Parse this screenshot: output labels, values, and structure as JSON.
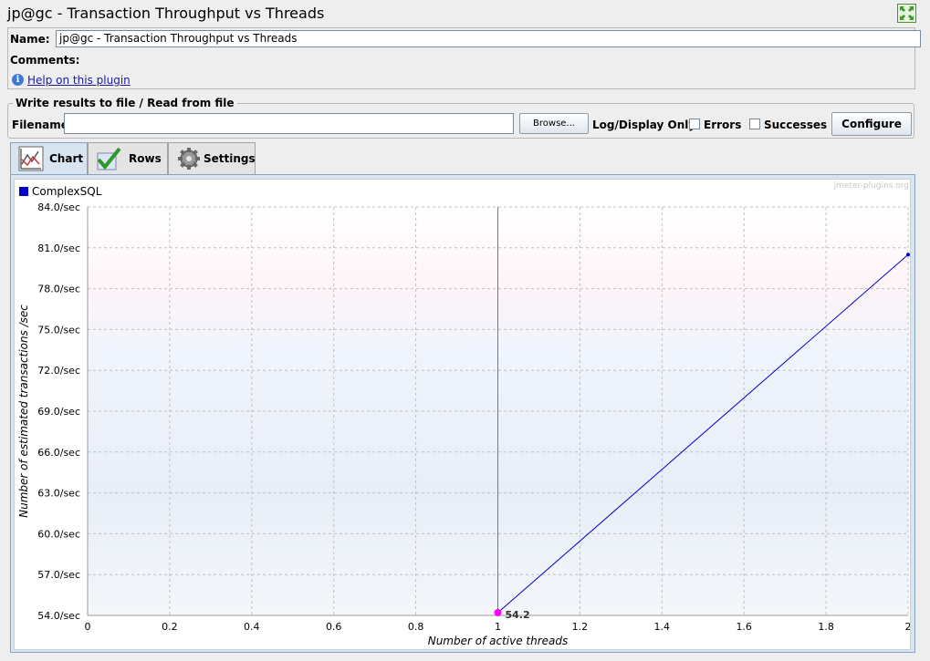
{
  "window": {
    "title": "jp@gc - Transaction Throughput vs Threads",
    "expand_icon": "expand-arrows-icon"
  },
  "form": {
    "name_label": "Name:",
    "name_value": "jp@gc - Transaction Throughput vs Threads",
    "comments_label": "Comments:",
    "help_link": "Help on this plugin",
    "help_icon": "info-icon"
  },
  "file": {
    "legend": "Write results to file / Read from file",
    "filename_label": "Filename",
    "filename_value": "",
    "browse_label": "Browse...",
    "log_display_label": "Log/Display Only:",
    "errors_label": "Errors",
    "errors_checked": false,
    "successes_label": "Successes",
    "successes_checked": false,
    "configure_label": "Configure"
  },
  "tabs": [
    {
      "label": "Chart",
      "icon": "chart-icon",
      "active": true
    },
    {
      "label": "Rows",
      "icon": "checkmark-icon",
      "active": false
    },
    {
      "label": "Settings",
      "icon": "gear-icon",
      "active": false
    }
  ],
  "chart_data": {
    "type": "line",
    "watermark": "jmeter-plugins.org",
    "xlabel": "Number of active threads",
    "ylabel": "Number of estimated transactions /sec",
    "xlim": [
      0,
      2
    ],
    "ylim": [
      54,
      84
    ],
    "x_ticks": [
      "0",
      "0.2",
      "0.4",
      "0.6",
      "0.8",
      "1",
      "1.2",
      "1.4",
      "1.6",
      "1.8",
      "2"
    ],
    "y_ticks": [
      "54.0/sec",
      "57.0/sec",
      "60.0/sec",
      "63.0/sec",
      "66.0/sec",
      "69.0/sec",
      "72.0/sec",
      "75.0/sec",
      "78.0/sec",
      "81.0/sec",
      "84.0/sec"
    ],
    "grid": true,
    "legend_position": "top-left",
    "series": [
      {
        "name": "ComplexSQL",
        "color": "#0000cc",
        "x": [
          1,
          2
        ],
        "y": [
          54.2,
          80.5
        ]
      }
    ],
    "highlight": {
      "x": 1,
      "y": 54.2,
      "label": "54.2",
      "color": "#ff00ff"
    }
  }
}
